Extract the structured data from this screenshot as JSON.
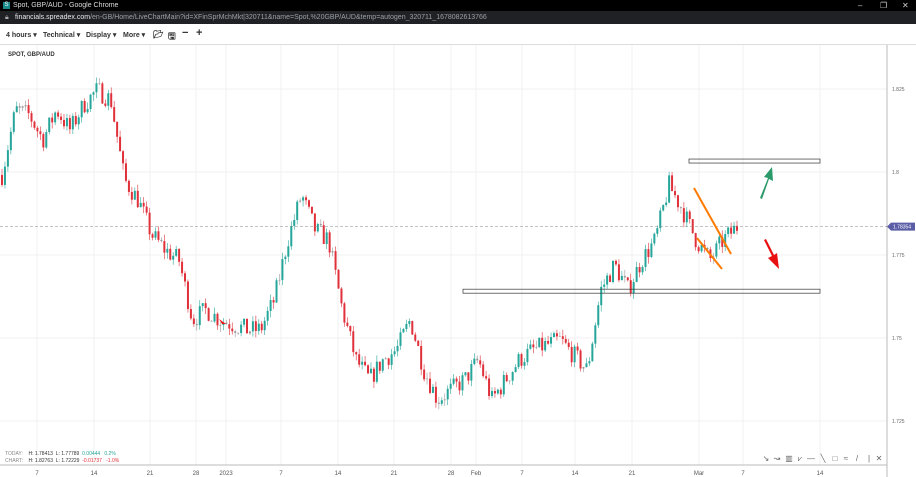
{
  "window": {
    "title": "Spot, GBP/AUD - Google Chrome",
    "favicon": "S",
    "controls": [
      "–",
      "❐",
      "✕"
    ]
  },
  "url": {
    "host": "financials.spreadex.com",
    "path": "/en-GB/Home/LiveChartMain?id=XFinSprMchMkt|320711&name=Spot,%20GBP/AUD&temp=autogen_320711_1678082613766"
  },
  "toolbar": {
    "interval": "4 hours ▾",
    "technical": "Technical ▾",
    "display": "Display ▾",
    "more": "More ▾",
    "icons": [
      "folder-open-icon",
      "save-icon",
      "zoom-out-icon",
      "zoom-in-icon"
    ]
  },
  "symbol": "SPOT, GBP/AUD",
  "stats": {
    "today": {
      "label": "TODAY:",
      "high": "H: 1.78413",
      "low": "L: 1.77789",
      "change": "0.00444",
      "pct": "0.2%"
    },
    "chart": {
      "label": "CHART:",
      "high": "H: 1.82763",
      "low": "L: 1.72229",
      "change": "-0.01737",
      "pct": "-1.0%"
    }
  },
  "colors": {
    "up": "#26a69a",
    "down": "#e0303a",
    "neutral": "#999999",
    "price_tag": "#5b5ea6",
    "trendline": "#ff7a00",
    "arrow_up": "#2a9a6a",
    "arrow_down": "#e81010"
  },
  "chart_data": {
    "type": "candlestick",
    "y_ticks": [
      "1.825",
      "1.8",
      "1.775",
      "1.75",
      "1.725"
    ],
    "ylim": [
      1.718,
      1.838
    ],
    "x_ticks": [
      "7",
      "14",
      "21",
      "28",
      "2023",
      "7",
      "14",
      "21",
      "28",
      "Feb",
      "7",
      "14",
      "21",
      "Mar",
      "7",
      "14"
    ],
    "current_price": "1.78354",
    "close_path": [
      1.7991,
      1.8187,
      1.8172,
      1.8097,
      1.8187,
      1.8127,
      1.8202,
      1.8247,
      1.8217,
      1.7976,
      1.7916,
      1.7811,
      1.7765,
      1.7735,
      1.7555,
      1.7585,
      1.7555,
      1.754,
      1.7525,
      1.7525,
      1.7615,
      1.7795,
      1.7931,
      1.7826,
      1.7795,
      1.7585,
      1.7434,
      1.7374,
      1.7434,
      1.7464,
      1.7555,
      1.7404,
      1.7314,
      1.7344,
      1.7374,
      1.7434,
      1.7314,
      1.7374,
      1.7434,
      1.7464,
      1.7479,
      1.7494,
      1.7449,
      1.7404,
      1.7645,
      1.772,
      1.7645,
      1.7735,
      1.7795,
      1.7961,
      1.7886,
      1.7795,
      1.7735,
      1.7795,
      1.7835
    ],
    "annotations": {
      "resistance": 1.8033,
      "support": 1.7641
    }
  }
}
